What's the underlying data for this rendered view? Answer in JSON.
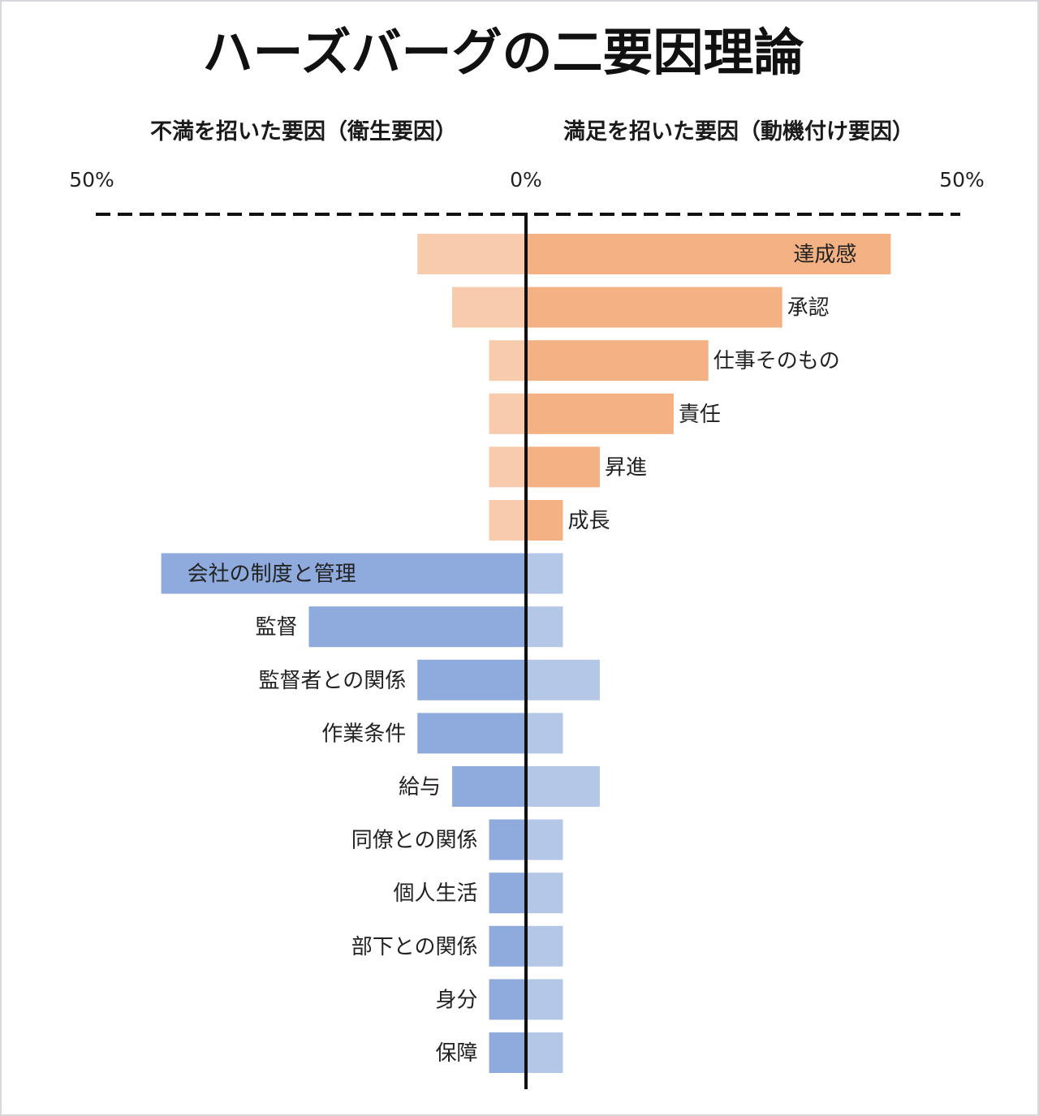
{
  "chart_data": {
    "type": "bar",
    "orientation": "horizontal-diverging",
    "title": "ハーズバーグの二要因理論",
    "left_header": "不満を招いた要因（衛生要因）",
    "right_header": "満足を招いた要因（動機付け要因）",
    "ticks": [
      "50%",
      "0%",
      "50%"
    ],
    "xlim": [
      -50,
      50
    ],
    "unit": "%",
    "colors": {
      "motivator_primary": "#f4b183",
      "motivator_secondary": "#f8cbad",
      "hygiene_primary": "#8faadc",
      "hygiene_secondary": "#b4c7e7",
      "axis": "#111111"
    },
    "categories": [
      {
        "name": "達成感",
        "group": "motivator",
        "dissatisfaction": 12.5,
        "satisfaction": 42
      },
      {
        "name": "承認",
        "group": "motivator",
        "dissatisfaction": 8.5,
        "satisfaction": 29.5
      },
      {
        "name": "仕事そのもの",
        "group": "motivator",
        "dissatisfaction": 4.25,
        "satisfaction": 21
      },
      {
        "name": "責任",
        "group": "motivator",
        "dissatisfaction": 4.25,
        "satisfaction": 17
      },
      {
        "name": "昇進",
        "group": "motivator",
        "dissatisfaction": 4.25,
        "satisfaction": 8.5
      },
      {
        "name": "成長",
        "group": "motivator",
        "dissatisfaction": 4.25,
        "satisfaction": 4.25
      },
      {
        "name": "会社の制度と管理",
        "group": "hygiene",
        "dissatisfaction": 42,
        "satisfaction": 4.25
      },
      {
        "name": "監督",
        "group": "hygiene",
        "dissatisfaction": 25,
        "satisfaction": 4.25
      },
      {
        "name": "監督者との関係",
        "group": "hygiene",
        "dissatisfaction": 12.5,
        "satisfaction": 8.5
      },
      {
        "name": "作業条件",
        "group": "hygiene",
        "dissatisfaction": 12.5,
        "satisfaction": 4.25
      },
      {
        "name": "給与",
        "group": "hygiene",
        "dissatisfaction": 8.5,
        "satisfaction": 8.5
      },
      {
        "name": "同僚との関係",
        "group": "hygiene",
        "dissatisfaction": 4.25,
        "satisfaction": 4.25
      },
      {
        "name": "個人生活",
        "group": "hygiene",
        "dissatisfaction": 4.25,
        "satisfaction": 4.25
      },
      {
        "name": "部下との関係",
        "group": "hygiene",
        "dissatisfaction": 4.25,
        "satisfaction": 4.25
      },
      {
        "name": "身分",
        "group": "hygiene",
        "dissatisfaction": 4.25,
        "satisfaction": 4.25
      },
      {
        "name": "保障",
        "group": "hygiene",
        "dissatisfaction": 4.25,
        "satisfaction": 4.25
      }
    ]
  }
}
